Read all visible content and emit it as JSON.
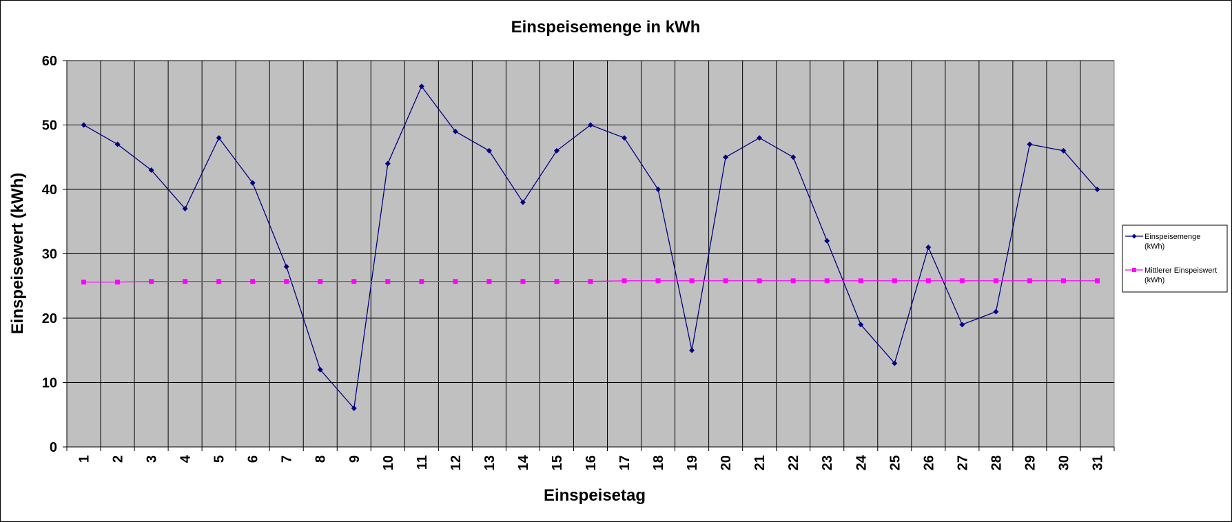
{
  "chart_data": {
    "type": "line",
    "title": "Einspeisemenge in kWh",
    "xlabel": "Einspeisetag",
    "ylabel": "Einspeisewert  (kWh)",
    "ylim": [
      0,
      60
    ],
    "yticks": [
      0,
      10,
      20,
      30,
      40,
      50,
      60
    ],
    "grid": true,
    "legend": "right",
    "categories": [
      "1",
      "2",
      "3",
      "4",
      "5",
      "6",
      "7",
      "8",
      "9",
      "10",
      "11",
      "12",
      "13",
      "14",
      "15",
      "16",
      "17",
      "18",
      "19",
      "20",
      "21",
      "22",
      "23",
      "24",
      "25",
      "26",
      "27",
      "28",
      "29",
      "30",
      "31"
    ],
    "series": [
      {
        "name": "Einspeisemenge",
        "name_line2": "(kWh)",
        "color": "#000080",
        "marker": "diamond",
        "values": [
          50,
          47,
          43,
          37,
          48,
          41,
          28,
          12,
          6,
          44,
          56,
          49,
          46,
          38,
          46,
          50,
          48,
          40,
          15,
          45,
          48,
          45,
          32,
          19,
          13,
          31,
          19,
          21,
          47,
          46,
          40
        ]
      },
      {
        "name": "Mittlerer Einspeiswert",
        "name_line2": "(kWh)",
        "color": "#ff00ff",
        "marker": "square",
        "values": [
          25.6,
          25.6,
          25.7,
          25.7,
          25.7,
          25.7,
          25.7,
          25.7,
          25.7,
          25.7,
          25.7,
          25.7,
          25.7,
          25.7,
          25.7,
          25.7,
          25.8,
          25.8,
          25.8,
          25.8,
          25.8,
          25.8,
          25.8,
          25.8,
          25.8,
          25.8,
          25.8,
          25.8,
          25.8,
          25.8,
          25.8
        ]
      }
    ],
    "plot_background": "#c0c0c0",
    "grid_color": "#000000"
  }
}
